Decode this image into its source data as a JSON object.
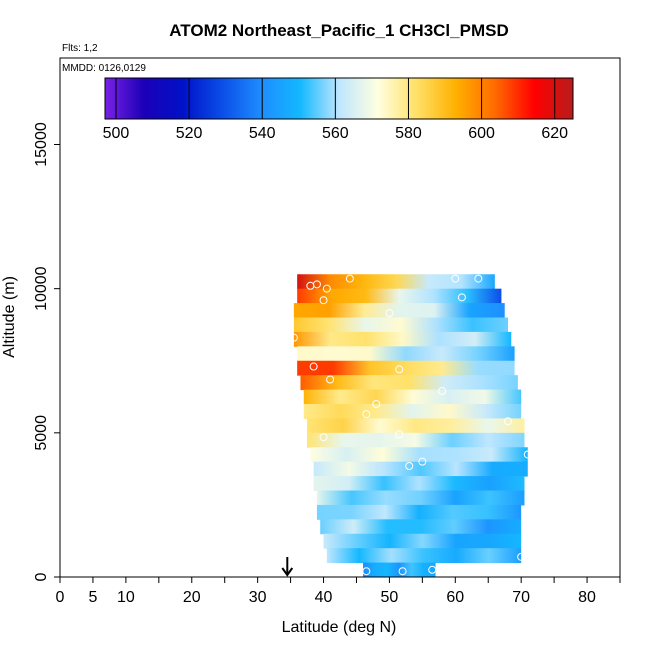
{
  "chart_data": {
    "type": "heatmap",
    "title": "ATOM2 Northeast_Pacific_1 CH3Cl_PMSD",
    "flights_text": "Flts: 1,2",
    "mmdd_text": "MMDD: 0126,0129",
    "xlabel": "Latitude (deg N)",
    "ylabel": "Altitude (m)",
    "xlim": [
      0,
      85
    ],
    "ylim": [
      0,
      18000
    ],
    "x_ticks": [
      0,
      5,
      10,
      20,
      30,
      40,
      50,
      60,
      70,
      80
    ],
    "x_minor_ticks": [
      15,
      25,
      35,
      45,
      55,
      65,
      75,
      85
    ],
    "y_ticks": [
      0,
      5000,
      10000,
      15000
    ],
    "marker_arrow_latitude": 34.5,
    "colorbar": {
      "range": [
        497,
        625
      ],
      "ticks": [
        500,
        520,
        540,
        560,
        580,
        600,
        620
      ],
      "colors": [
        "#7a22e6",
        "#1b00b8",
        "#0012c8",
        "#0a4ee8",
        "#1f8cff",
        "#13b8ff",
        "#bfe6ff",
        "#ffffe0",
        "#ffe066",
        "#ffb000",
        "#ff6a00",
        "#ff0000",
        "#b81c1c"
      ]
    },
    "cells": [
      {
        "lat_min": 36,
        "lat_max": 66,
        "alt_min": 10000,
        "alt_max": 10500,
        "left_value": 615,
        "right_value": 545
      },
      {
        "lat_min": 36,
        "lat_max": 67,
        "alt_min": 9500,
        "alt_max": 10000,
        "left_value": 610,
        "right_value": 535
      },
      {
        "lat_min": 35.5,
        "lat_max": 67.5,
        "alt_min": 9000,
        "alt_max": 9500,
        "left_value": 600,
        "right_value": 540
      },
      {
        "lat_min": 35.5,
        "lat_max": 68,
        "alt_min": 8500,
        "alt_max": 9000,
        "left_value": 585,
        "right_value": 550
      },
      {
        "lat_min": 35.5,
        "lat_max": 68.5,
        "alt_min": 8000,
        "alt_max": 8500,
        "left_value": 592,
        "right_value": 552
      },
      {
        "lat_min": 36,
        "lat_max": 69,
        "alt_min": 7500,
        "alt_max": 8000,
        "left_value": 578,
        "right_value": 550
      },
      {
        "lat_min": 36,
        "lat_max": 69,
        "alt_min": 7000,
        "alt_max": 7500,
        "left_value": 612,
        "right_value": 555
      },
      {
        "lat_min": 36.5,
        "lat_max": 69.5,
        "alt_min": 6500,
        "alt_max": 7000,
        "left_value": 600,
        "right_value": 552
      },
      {
        "lat_min": 37,
        "lat_max": 70,
        "alt_min": 6000,
        "alt_max": 6500,
        "left_value": 590,
        "right_value": 558
      },
      {
        "lat_min": 37,
        "lat_max": 70,
        "alt_min": 5500,
        "alt_max": 6000,
        "left_value": 585,
        "right_value": 560
      },
      {
        "lat_min": 37.5,
        "lat_max": 70.5,
        "alt_min": 5000,
        "alt_max": 5500,
        "left_value": 582,
        "right_value": 572
      },
      {
        "lat_min": 37.5,
        "lat_max": 70.5,
        "alt_min": 4500,
        "alt_max": 5000,
        "left_value": 575,
        "right_value": 555
      },
      {
        "lat_min": 38,
        "lat_max": 71,
        "alt_min": 4000,
        "alt_max": 4500,
        "left_value": 572,
        "right_value": 555
      },
      {
        "lat_min": 38.5,
        "lat_max": 71,
        "alt_min": 3500,
        "alt_max": 4000,
        "left_value": 568,
        "right_value": 548
      },
      {
        "lat_min": 38.5,
        "lat_max": 70.5,
        "alt_min": 3000,
        "alt_max": 3500,
        "left_value": 565,
        "right_value": 545
      },
      {
        "lat_min": 39,
        "lat_max": 70.5,
        "alt_min": 2500,
        "alt_max": 3000,
        "left_value": 562,
        "right_value": 545
      },
      {
        "lat_min": 39,
        "lat_max": 70,
        "alt_min": 2000,
        "alt_max": 2500,
        "left_value": 560,
        "right_value": 548
      },
      {
        "lat_min": 39.5,
        "lat_max": 70,
        "alt_min": 1500,
        "alt_max": 2000,
        "left_value": 560,
        "right_value": 545
      },
      {
        "lat_min": 40,
        "lat_max": 70,
        "alt_min": 1000,
        "alt_max": 1500,
        "left_value": 558,
        "right_value": 545
      },
      {
        "lat_min": 40.5,
        "lat_max": 70,
        "alt_min": 500,
        "alt_max": 1000,
        "left_value": 558,
        "right_value": 548
      },
      {
        "lat_min": 46,
        "lat_max": 57,
        "alt_min": 0,
        "alt_max": 500,
        "left_value": 545,
        "right_value": 550
      }
    ],
    "points": [
      {
        "lat": 38,
        "alt": 10100
      },
      {
        "lat": 39,
        "alt": 10150
      },
      {
        "lat": 40.5,
        "alt": 10000
      },
      {
        "lat": 44,
        "alt": 10350
      },
      {
        "lat": 60,
        "alt": 10350
      },
      {
        "lat": 63.5,
        "alt": 10350
      },
      {
        "lat": 61,
        "alt": 9700
      },
      {
        "lat": 40,
        "alt": 9600
      },
      {
        "lat": 50,
        "alt": 9150
      },
      {
        "lat": 35.5,
        "alt": 8300
      },
      {
        "lat": 38.5,
        "alt": 7300
      },
      {
        "lat": 51.5,
        "alt": 7200
      },
      {
        "lat": 41,
        "alt": 6850
      },
      {
        "lat": 58,
        "alt": 6450
      },
      {
        "lat": 46.5,
        "alt": 5650
      },
      {
        "lat": 48,
        "alt": 6000
      },
      {
        "lat": 68,
        "alt": 5400
      },
      {
        "lat": 51.5,
        "alt": 4950
      },
      {
        "lat": 40,
        "alt": 4850
      },
      {
        "lat": 71,
        "alt": 4250
      },
      {
        "lat": 53,
        "alt": 3850
      },
      {
        "lat": 55,
        "alt": 4000
      },
      {
        "lat": 70,
        "alt": 700
      },
      {
        "lat": 46.5,
        "alt": 200
      },
      {
        "lat": 52,
        "alt": 200
      },
      {
        "lat": 56.5,
        "alt": 250
      }
    ]
  }
}
